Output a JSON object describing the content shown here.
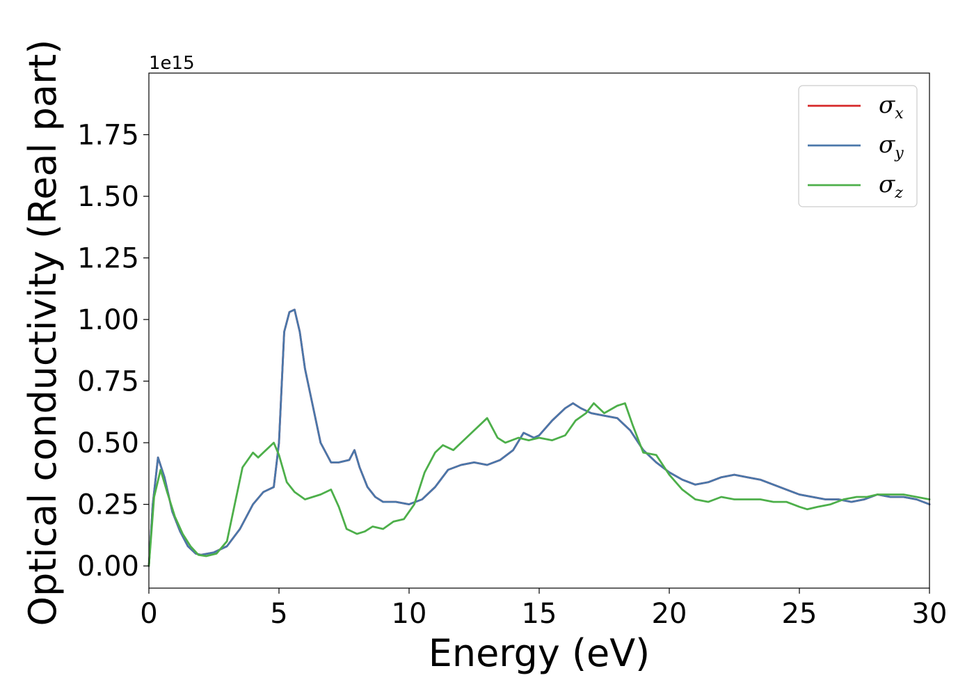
{
  "chart_data": {
    "type": "line",
    "xlabel": "Energy (eV)",
    "ylabel": "Optical conductivity (Real part)",
    "y_offset_text": "1e15",
    "xlim": [
      0,
      30
    ],
    "ylim": [
      -0.09,
      2.0
    ],
    "x_ticks": [
      0,
      5,
      10,
      15,
      20,
      25,
      30
    ],
    "x_tick_labels": [
      "0",
      "5",
      "10",
      "15",
      "20",
      "25",
      "30"
    ],
    "y_ticks": [
      0,
      0.25,
      0.5,
      0.75,
      1.0,
      1.25,
      1.5,
      1.75
    ],
    "y_tick_labels": [
      "0.00",
      "0.25",
      "0.50",
      "0.75",
      "1.00",
      "1.25",
      "1.50",
      "1.75"
    ],
    "grid": false,
    "legend_position": "top-right",
    "series": [
      {
        "name": "σ",
        "subscript": "x",
        "color": "#d62728",
        "x": [
          0,
          0.15,
          0.35,
          0.6,
          0.9,
          1.2,
          1.5,
          1.8,
          2.0,
          2.5,
          3.0,
          3.5,
          4.0,
          4.4,
          4.8,
          5.0,
          5.2,
          5.4,
          5.6,
          5.8,
          6.0,
          6.3,
          6.6,
          7.0,
          7.3,
          7.7,
          7.9,
          8.1,
          8.4,
          8.7,
          9.0,
          9.5,
          10.0,
          10.5,
          11.0,
          11.5,
          12.0,
          12.5,
          13.0,
          13.5,
          14.0,
          14.4,
          14.8,
          15.0,
          15.5,
          16.0,
          16.3,
          16.6,
          17.0,
          17.5,
          18.0,
          18.5,
          19.0,
          19.5,
          20.0,
          20.5,
          21.0,
          21.5,
          22.0,
          22.5,
          23.0,
          23.5,
          24.0,
          24.5,
          25.0,
          25.5,
          26.0,
          26.5,
          27.0,
          27.5,
          28.0,
          28.5,
          29.0,
          29.5,
          30.0
        ],
        "values": [
          0,
          0.25,
          0.44,
          0.36,
          0.22,
          0.14,
          0.08,
          0.05,
          0.045,
          0.055,
          0.08,
          0.15,
          0.25,
          0.3,
          0.32,
          0.5,
          0.95,
          1.03,
          1.04,
          0.95,
          0.8,
          0.65,
          0.5,
          0.42,
          0.42,
          0.43,
          0.47,
          0.4,
          0.32,
          0.28,
          0.26,
          0.26,
          0.25,
          0.27,
          0.32,
          0.39,
          0.41,
          0.42,
          0.41,
          0.43,
          0.47,
          0.54,
          0.52,
          0.53,
          0.59,
          0.64,
          0.66,
          0.64,
          0.62,
          0.61,
          0.6,
          0.55,
          0.47,
          0.42,
          0.38,
          0.35,
          0.33,
          0.34,
          0.36,
          0.37,
          0.36,
          0.35,
          0.33,
          0.31,
          0.29,
          0.28,
          0.27,
          0.27,
          0.26,
          0.27,
          0.29,
          0.28,
          0.28,
          0.27,
          0.25
        ]
      },
      {
        "name": "σ",
        "subscript": "y",
        "color": "#4a77aa",
        "x": [
          0,
          0.15,
          0.35,
          0.6,
          0.9,
          1.2,
          1.5,
          1.8,
          2.0,
          2.5,
          3.0,
          3.5,
          4.0,
          4.4,
          4.8,
          5.0,
          5.2,
          5.4,
          5.6,
          5.8,
          6.0,
          6.3,
          6.6,
          7.0,
          7.3,
          7.7,
          7.9,
          8.1,
          8.4,
          8.7,
          9.0,
          9.5,
          10.0,
          10.5,
          11.0,
          11.5,
          12.0,
          12.5,
          13.0,
          13.5,
          14.0,
          14.4,
          14.8,
          15.0,
          15.5,
          16.0,
          16.3,
          16.6,
          17.0,
          17.5,
          18.0,
          18.5,
          19.0,
          19.5,
          20.0,
          20.5,
          21.0,
          21.5,
          22.0,
          22.5,
          23.0,
          23.5,
          24.0,
          24.5,
          25.0,
          25.5,
          26.0,
          26.5,
          27.0,
          27.5,
          28.0,
          28.5,
          29.0,
          29.5,
          30.0
        ],
        "values": [
          0,
          0.25,
          0.44,
          0.36,
          0.22,
          0.14,
          0.08,
          0.05,
          0.045,
          0.055,
          0.08,
          0.15,
          0.25,
          0.3,
          0.32,
          0.5,
          0.95,
          1.03,
          1.04,
          0.95,
          0.8,
          0.65,
          0.5,
          0.42,
          0.42,
          0.43,
          0.47,
          0.4,
          0.32,
          0.28,
          0.26,
          0.26,
          0.25,
          0.27,
          0.32,
          0.39,
          0.41,
          0.42,
          0.41,
          0.43,
          0.47,
          0.54,
          0.52,
          0.53,
          0.59,
          0.64,
          0.66,
          0.64,
          0.62,
          0.61,
          0.6,
          0.55,
          0.47,
          0.42,
          0.38,
          0.35,
          0.33,
          0.34,
          0.36,
          0.37,
          0.36,
          0.35,
          0.33,
          0.31,
          0.29,
          0.28,
          0.27,
          0.27,
          0.26,
          0.27,
          0.29,
          0.28,
          0.28,
          0.27,
          0.25
        ]
      },
      {
        "name": "σ",
        "subscript": "z",
        "color": "#4daf4a",
        "x": [
          0,
          0.2,
          0.45,
          0.7,
          1.0,
          1.3,
          1.6,
          1.9,
          2.2,
          2.6,
          3.0,
          3.3,
          3.6,
          4.0,
          4.2,
          4.5,
          4.8,
          5.0,
          5.3,
          5.6,
          6.0,
          6.3,
          6.6,
          7.0,
          7.3,
          7.6,
          8.0,
          8.3,
          8.6,
          9.0,
          9.4,
          9.8,
          10.2,
          10.6,
          11.0,
          11.3,
          11.7,
          12.0,
          12.5,
          13.0,
          13.4,
          13.7,
          14.2,
          14.6,
          15.0,
          15.5,
          16.0,
          16.4,
          16.8,
          17.1,
          17.5,
          18.0,
          18.3,
          18.6,
          19.0,
          19.5,
          20.0,
          20.5,
          21.0,
          21.5,
          22.0,
          22.5,
          23.0,
          23.5,
          24.0,
          24.5,
          25.0,
          25.3,
          25.7,
          26.2,
          26.7,
          27.2,
          27.6,
          28.0,
          28.5,
          29.0,
          29.5,
          30.0
        ],
        "values": [
          0,
          0.28,
          0.39,
          0.3,
          0.2,
          0.13,
          0.08,
          0.045,
          0.04,
          0.05,
          0.1,
          0.25,
          0.4,
          0.46,
          0.44,
          0.47,
          0.5,
          0.45,
          0.34,
          0.3,
          0.27,
          0.28,
          0.29,
          0.31,
          0.24,
          0.15,
          0.13,
          0.14,
          0.16,
          0.15,
          0.18,
          0.19,
          0.25,
          0.38,
          0.46,
          0.49,
          0.47,
          0.5,
          0.55,
          0.6,
          0.52,
          0.5,
          0.52,
          0.51,
          0.52,
          0.51,
          0.53,
          0.59,
          0.62,
          0.66,
          0.62,
          0.65,
          0.66,
          0.57,
          0.46,
          0.45,
          0.37,
          0.31,
          0.27,
          0.26,
          0.28,
          0.27,
          0.27,
          0.27,
          0.26,
          0.26,
          0.24,
          0.23,
          0.24,
          0.25,
          0.27,
          0.28,
          0.28,
          0.29,
          0.29,
          0.29,
          0.28,
          0.27
        ]
      }
    ]
  }
}
